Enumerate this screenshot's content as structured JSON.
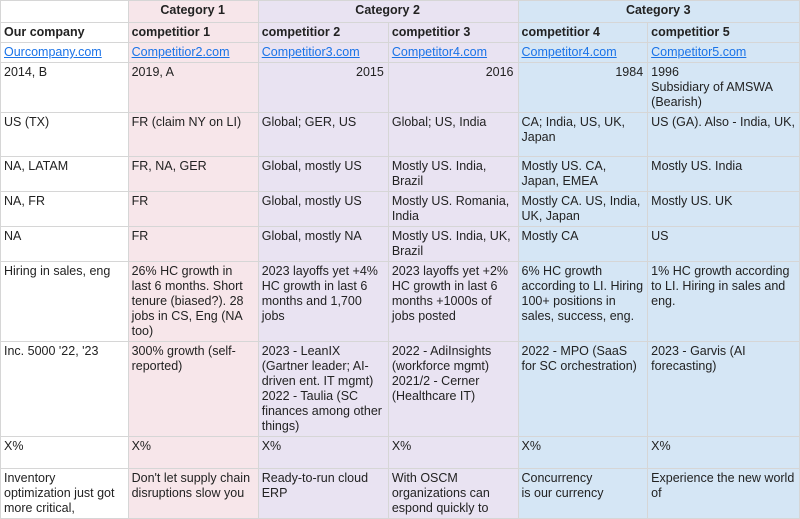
{
  "categories": {
    "cat1": "Category 1",
    "cat2": "Category 2",
    "cat3": "Category 3"
  },
  "names": {
    "ours": "Our company",
    "c1": "competitior 1",
    "c2": "competitior 2",
    "c3": "competitior 3",
    "c4": "competitior 4",
    "c5": "competitior 5"
  },
  "links": {
    "ours": "Ourcompany.com",
    "c1": "Competitior2.com",
    "c2": "Competitior3.com",
    "c3": "Competitor4.com",
    "c4": "Competitor4.com",
    "c5": "Competitor5.com"
  },
  "founded": {
    "ours": "2014, B",
    "c1": "2019, A",
    "c2": "2015",
    "c3": "2016",
    "c4": "1984",
    "c5_l1": "1996",
    "c5_l2": "Subsidiary of AMSWA",
    "c5_l3": "(Bearish)"
  },
  "hq": {
    "ours": "US (TX)",
    "c1": "FR (claim NY on LI)",
    "c2": "Global; GER, US",
    "c3": "Global; US, India",
    "c4": "CA; India, US, UK, Japan",
    "c5": "US (GA). Also - India, UK,"
  },
  "markets": {
    "ours": "NA, LATAM",
    "c1": "FR, NA, GER",
    "c2": "Global, mostly US",
    "c3": "Mostly US. India, Brazil",
    "c4": "Mostly US. CA, Japan, EMEA",
    "c5": "Mostly US. India"
  },
  "customers": {
    "ours": "NA, FR",
    "c1": "FR",
    "c2": "Global, mostly US",
    "c3": "Mostly US. Romania, India",
    "c4": "Mostly CA. US, India, UK, Japan",
    "c5": "Mostly US. UK"
  },
  "team": {
    "ours": "NA",
    "c1": "FR",
    "c2": "Global, mostly NA",
    "c3": "Mostly US. India, UK, Brazil",
    "c4": "Mostly CA",
    "c5": "US"
  },
  "hiring": {
    "ours": "Hiring in sales, eng",
    "c1": "26% HC growth in last 6 months. Short tenure (biased?). 28 jobs in CS, Eng (NA too)",
    "c2": "2023 layoffs yet +4% HC growth in last 6 months and 1,700 jobs",
    "c3": "2023 layoffs yet +2% HC growth in last 6 months +1000s of jobs posted",
    "c4": "6% HC growth according to LI. Hiring 100+ positions in sales, success, eng.",
    "c5": "1% HC growth according to LI. Hiring in sales and eng."
  },
  "milestones": {
    "ours": "Inc. 5000 '22, '23",
    "c1": "300% growth (self-reported)",
    "c2_l1": "2023 - LeanIX (Gartner leader; AI-driven ent. IT mgmt)",
    "c2_l2": "2022 - Taulia (SC finances among other things)",
    "c3_l1": "2022 - AdiInsights (workforce mgmt)",
    "c3_l2": "2021/2 - Cerner (Healthcare IT)",
    "c4": "2022 - MPO (SaaS for SC orchestration)",
    "c5": "2023 - Garvis (AI forecasting)"
  },
  "share": {
    "ours": "X%",
    "c1": "X%",
    "c2": "X%",
    "c3": "X%",
    "c4": "X%",
    "c5": "X%"
  },
  "tagline": {
    "ours": "Inventory optimization just got more critical,",
    "c1": "Don't let supply chain disruptions slow you",
    "c2": "Ready-to-run cloud ERP",
    "c3": "With OSCM organizations can espond quickly to",
    "c4_l1": "Concurrency",
    "c4_l2": "is our currency",
    "c5": "Experience the new world of"
  }
}
